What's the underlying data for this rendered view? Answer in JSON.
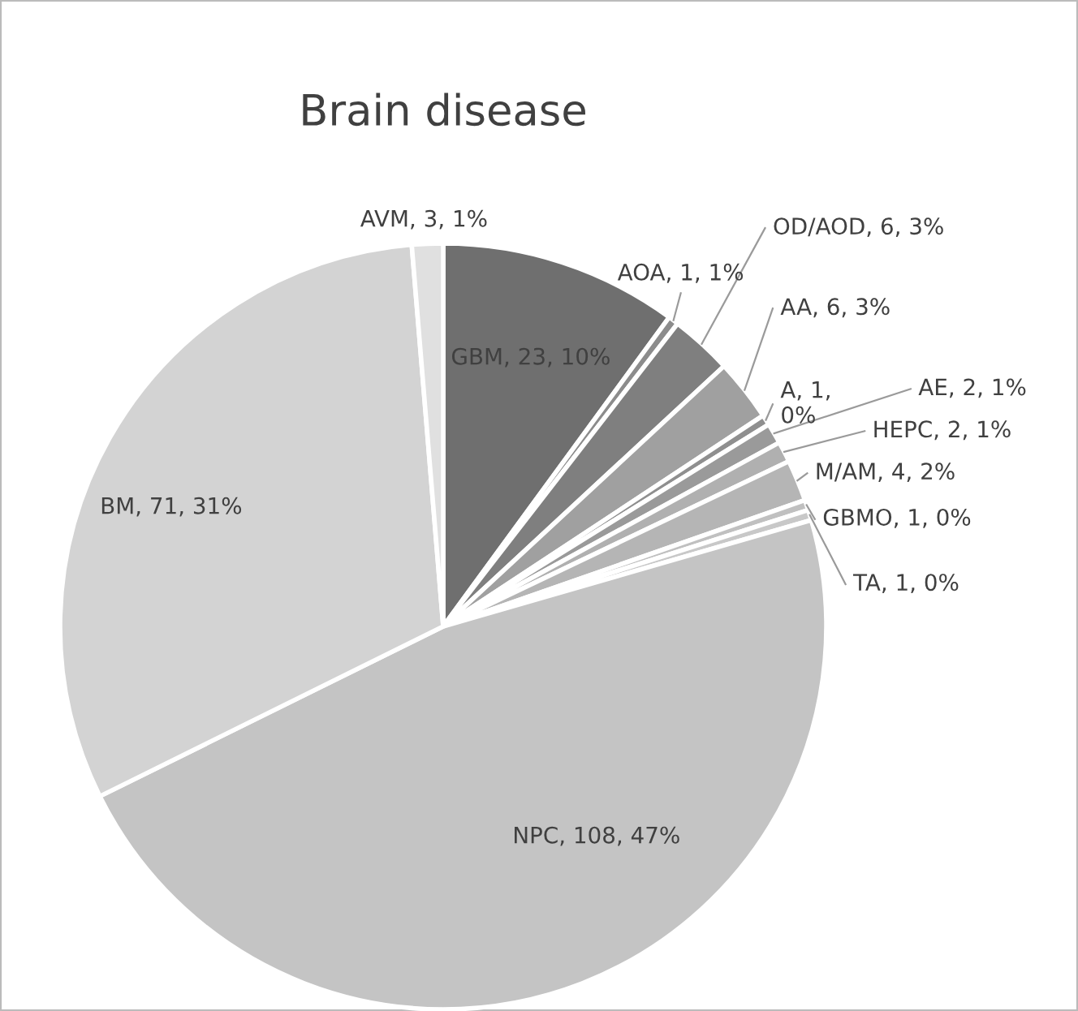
{
  "chart_data": {
    "type": "pie",
    "title": "Brain disease",
    "categories": [
      "GBM, 23, 10%",
      "AOA, 1, 1%",
      "OD/AOD, 6, 3%",
      "AA, 6, 3%",
      "A, 1,\n0%",
      "AE, 2, 1%",
      "HEPC, 2, 1%",
      "M/AM, 4, 2%",
      "GBMO, 1, 0%",
      "TA, 1, 0%",
      "NPC, 108, 47%",
      "BM, 71, 31%",
      "AVM, 3, 1%"
    ],
    "values": [
      23,
      1,
      6,
      6,
      1,
      2,
      2,
      4,
      1,
      1,
      108,
      71,
      3
    ],
    "colors": [
      "#6f6f6f",
      "#8c8c8c",
      "#7f7f7f",
      "#a0a0a0",
      "#8f8f8f",
      "#9a9a9a",
      "#b0b0b0",
      "#b5b5b5",
      "#c0c0c0",
      "#c8c8c8",
      "#c4c4c4",
      "#d3d3d3",
      "#e0e0e0"
    ]
  }
}
